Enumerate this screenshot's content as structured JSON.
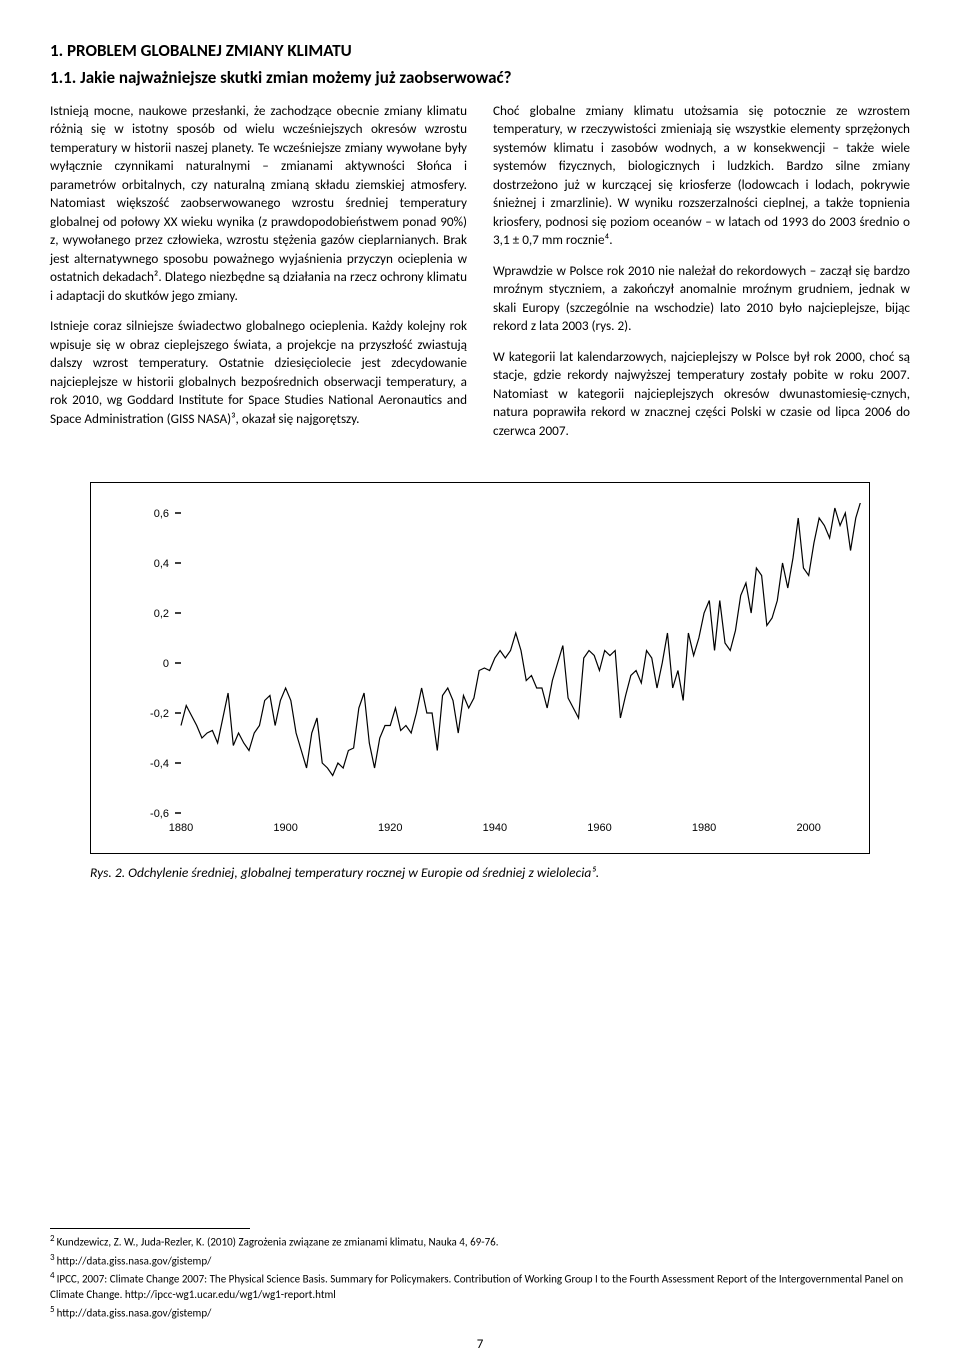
{
  "heading1": "1. PROBLEM GLOBALNEJ ZMIANY KLIMATU",
  "heading2": "1.1. Jakie najważniejsze skutki zmian możemy już zaobserwować?",
  "left": {
    "p1": "Istnieją mocne, naukowe przesłanki, że zachodzące obecnie zmiany klimatu różnią się w istotny sposób od wielu wcześniejszych okresów wzrostu temperatury w historii naszej planety. Te wcześniejsze zmiany wywołane były wyłącznie czynnikami naturalnymi – zmianami aktywności Słońca i parametrów orbitalnych, czy naturalną zmianą składu ziemskiej atmosfery. Natomiast większość zaobserwowanego wzrostu średniej temperatury globalnej od połowy XX wieku wynika (z prawdopodobieństwem ponad 90%) z, wywołanego przez człowieka, wzrostu stężenia gazów cieplarnianych. Brak jest alternatywnego sposobu poważnego wyjaśnienia przyczyn ocieplenia w ostatnich dekadach². Dlatego niezbędne są działania na rzecz ochrony klimatu i adaptacji do skutków jego zmiany.",
    "p2": "Istnieje coraz silniejsze świadectwo globalnego ocieplenia. Każdy kolejny rok wpisuje się w obraz cieplejszego świata, a projekcje na przyszłość zwiastują dalszy wzrost temperatury. Ostatnie dziesięciolecie jest zdecydowanie najcieplejsze w historii globalnych bezpośrednich obserwacji temperatury, a rok 2010, wg Goddard Institute for Space Studies National Aeronautics and Space Administration (GISS NASA)³, okazał się najgorętszy."
  },
  "right": {
    "p1": "Choć globalne zmiany klimatu utożsamia się potocznie ze wzrostem temperatury, w rzeczywistości zmieniają się wszystkie elementy sprzężonych systemów klimatu i zasobów wodnych, a w konsekwencji – także wiele systemów fizycznych, biologicznych i ludzkich. Bardzo silne zmiany dostrzeżono już w kurczącej się kriosferze (lodowcach i lodach, pokrywie śnieżnej i zmarzlinie). W wyniku rozszerzalności cieplnej, a także topnienia kriosfery, podnosi się poziom oceanów – w latach od 1993 do 2003 średnio o 3,1 ± 0,7 mm rocznie⁴.",
    "p2": "Wprawdzie w Polsce rok 2010 nie należał do rekordowych – zaczął się bardzo mroźnym styczniem, a zakończył anomalnie mroźnym grudniem, jednak w skali Europy (szczególnie na wschodzie) lato 2010 było najcieplejsze, bijąc rekord z lata 2003 (rys. 2).",
    "p3": "W kategorii lat kalendarzowych, najcieplejszy w Polsce był rok 2000, choć są stacje, gdzie rekordy najwyższej temperatury zostały pobite w roku 2007. Natomiast w kategorii najcieplejszych okresów dwunastomiesię-cznych, natura poprawiła rekord w znacznej części Polski w czasie od lipca 2006 do czerwca 2007."
  },
  "chart": {
    "type": "line",
    "background_color": "#ffffff",
    "line_color": "#000000",
    "line_width": 1.2,
    "axis_color": "#000000",
    "tick_fontsize": 11,
    "xlim": [
      1880,
      2010
    ],
    "ylim": [
      -0.6,
      0.6
    ],
    "xticks": [
      1880,
      1900,
      1920,
      1940,
      1960,
      1980,
      2000
    ],
    "yticks": [
      -0.6,
      -0.4,
      -0.2,
      0,
      0.2,
      0.4,
      0.6
    ],
    "ytick_labels": [
      "-0,6",
      "-0,4",
      "-0,2",
      "0",
      "0,2",
      "0,4",
      "0,6"
    ],
    "data": [
      [
        1880,
        -0.25
      ],
      [
        1881,
        -0.17
      ],
      [
        1882,
        -0.21
      ],
      [
        1883,
        -0.25
      ],
      [
        1884,
        -0.3
      ],
      [
        1885,
        -0.28
      ],
      [
        1886,
        -0.27
      ],
      [
        1887,
        -0.32
      ],
      [
        1888,
        -0.22
      ],
      [
        1889,
        -0.12
      ],
      [
        1890,
        -0.33
      ],
      [
        1891,
        -0.28
      ],
      [
        1892,
        -0.32
      ],
      [
        1893,
        -0.35
      ],
      [
        1894,
        -0.28
      ],
      [
        1895,
        -0.25
      ],
      [
        1896,
        -0.15
      ],
      [
        1897,
        -0.13
      ],
      [
        1898,
        -0.25
      ],
      [
        1899,
        -0.15
      ],
      [
        1900,
        -0.1
      ],
      [
        1901,
        -0.15
      ],
      [
        1902,
        -0.28
      ],
      [
        1903,
        -0.35
      ],
      [
        1904,
        -0.42
      ],
      [
        1905,
        -0.28
      ],
      [
        1906,
        -0.22
      ],
      [
        1907,
        -0.4
      ],
      [
        1908,
        -0.42
      ],
      [
        1909,
        -0.45
      ],
      [
        1910,
        -0.4
      ],
      [
        1911,
        -0.42
      ],
      [
        1912,
        -0.35
      ],
      [
        1913,
        -0.34
      ],
      [
        1914,
        -0.18
      ],
      [
        1915,
        -0.12
      ],
      [
        1916,
        -0.32
      ],
      [
        1917,
        -0.42
      ],
      [
        1918,
        -0.3
      ],
      [
        1919,
        -0.25
      ],
      [
        1920,
        -0.25
      ],
      [
        1921,
        -0.18
      ],
      [
        1922,
        -0.27
      ],
      [
        1923,
        -0.25
      ],
      [
        1924,
        -0.28
      ],
      [
        1925,
        -0.2
      ],
      [
        1926,
        -0.1
      ],
      [
        1927,
        -0.2
      ],
      [
        1928,
        -0.2
      ],
      [
        1929,
        -0.35
      ],
      [
        1930,
        -0.13
      ],
      [
        1931,
        -0.1
      ],
      [
        1932,
        -0.15
      ],
      [
        1933,
        -0.28
      ],
      [
        1934,
        -0.13
      ],
      [
        1935,
        -0.18
      ],
      [
        1936,
        -0.14
      ],
      [
        1937,
        -0.03
      ],
      [
        1938,
        -0.02
      ],
      [
        1939,
        -0.03
      ],
      [
        1940,
        0.02
      ],
      [
        1941,
        0.05
      ],
      [
        1942,
        0.02
      ],
      [
        1943,
        0.05
      ],
      [
        1944,
        0.12
      ],
      [
        1945,
        0.05
      ],
      [
        1946,
        -0.07
      ],
      [
        1947,
        -0.05
      ],
      [
        1948,
        -0.1
      ],
      [
        1949,
        -0.1
      ],
      [
        1950,
        -0.18
      ],
      [
        1951,
        -0.07
      ],
      [
        1952,
        0.0
      ],
      [
        1953,
        0.07
      ],
      [
        1954,
        -0.14
      ],
      [
        1955,
        -0.18
      ],
      [
        1956,
        -0.22
      ],
      [
        1957,
        0.02
      ],
      [
        1958,
        0.05
      ],
      [
        1959,
        0.03
      ],
      [
        1960,
        -0.03
      ],
      [
        1961,
        0.05
      ],
      [
        1962,
        0.03
      ],
      [
        1963,
        0.05
      ],
      [
        1964,
        -0.22
      ],
      [
        1965,
        -0.13
      ],
      [
        1966,
        -0.05
      ],
      [
        1967,
        -0.03
      ],
      [
        1968,
        -0.08
      ],
      [
        1969,
        0.05
      ],
      [
        1970,
        0.02
      ],
      [
        1971,
        -0.1
      ],
      [
        1972,
        0.0
      ],
      [
        1973,
        0.12
      ],
      [
        1974,
        -0.1
      ],
      [
        1975,
        -0.03
      ],
      [
        1976,
        -0.15
      ],
      [
        1977,
        0.12
      ],
      [
        1978,
        0.03
      ],
      [
        1979,
        0.1
      ],
      [
        1980,
        0.2
      ],
      [
        1981,
        0.25
      ],
      [
        1982,
        0.05
      ],
      [
        1983,
        0.25
      ],
      [
        1984,
        0.08
      ],
      [
        1985,
        0.05
      ],
      [
        1986,
        0.13
      ],
      [
        1987,
        0.27
      ],
      [
        1988,
        0.32
      ],
      [
        1989,
        0.2
      ],
      [
        1990,
        0.38
      ],
      [
        1991,
        0.35
      ],
      [
        1992,
        0.15
      ],
      [
        1993,
        0.18
      ],
      [
        1994,
        0.25
      ],
      [
        1995,
        0.4
      ],
      [
        1996,
        0.3
      ],
      [
        1997,
        0.42
      ],
      [
        1998,
        0.58
      ],
      [
        1999,
        0.38
      ],
      [
        2000,
        0.35
      ],
      [
        2001,
        0.48
      ],
      [
        2002,
        0.58
      ],
      [
        2003,
        0.55
      ],
      [
        2004,
        0.5
      ],
      [
        2005,
        0.62
      ],
      [
        2006,
        0.55
      ],
      [
        2007,
        0.6
      ],
      [
        2008,
        0.45
      ],
      [
        2009,
        0.58
      ],
      [
        2010,
        0.65
      ]
    ]
  },
  "caption": "Rys. 2. Odchylenie średniej, globalnej temperatury rocznej w Europie od średniej z wielolecia⁵.",
  "footnotes": {
    "f2": "Kundzewicz, Z. W., Juda-Rezler, K. (2010) Zagrożenia związane ze zmianami klimatu, Nauka 4, 69-76.",
    "f3": "http://data.giss.nasa.gov/gistemp/",
    "f4": "IPCC, 2007: Climate Change 2007: The Physical Science Basis. Summary for Policymakers. Contribution of Working Group I to the Fourth Assessment Report of the Intergovernmental Panel on Climate Change.    http://ipcc-wg1.ucar.edu/wg1/wg1-report.html",
    "f5": "http://data.giss.nasa.gov/gistemp/"
  },
  "pagenum": "7"
}
